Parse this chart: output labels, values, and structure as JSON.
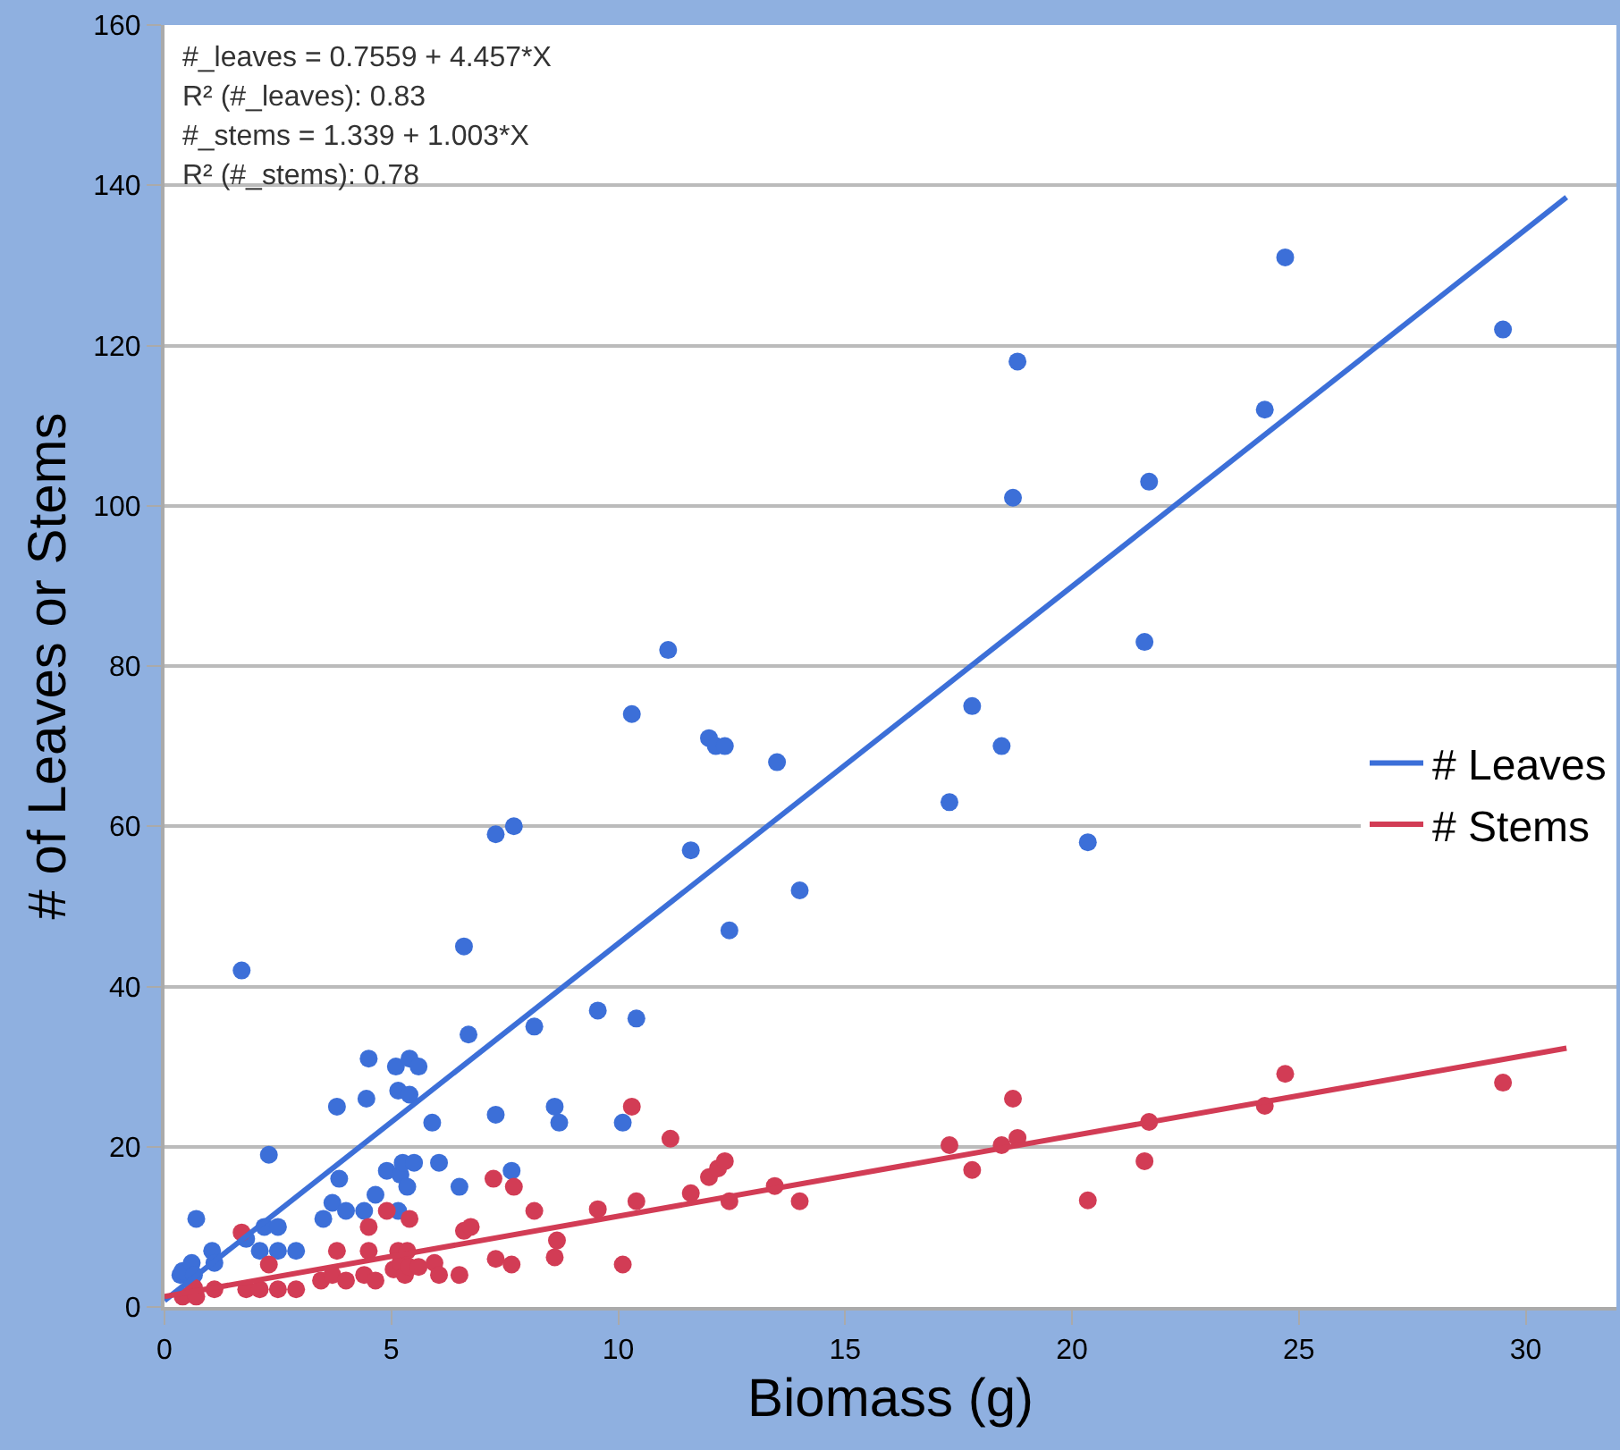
{
  "chart_data": {
    "type": "scatter",
    "xlabel": "Biomass (g)",
    "ylabel": "# of Leaves or Stems",
    "annotations": [
      "#_leaves = 0.7559 + 4.457*X",
      "R² (#_leaves): 0.83",
      "#_stems = 1.339 + 1.003*X",
      "R² (#_stems): 0.78"
    ],
    "xlim": [
      0,
      32
    ],
    "xticks": [
      0,
      5,
      10,
      15,
      20,
      25,
      30
    ],
    "ylim": [
      0,
      160
    ],
    "yticks": [
      0,
      20,
      40,
      60,
      80,
      100,
      120,
      140,
      160
    ],
    "grid": "y",
    "legend": "right",
    "series": [
      {
        "type": "scatter",
        "color": "#3c6fd8",
        "x": [
          0.35,
          0.4,
          0.6,
          0.65,
          0.7,
          1.05,
          1.1,
          1.7,
          1.8,
          2.1,
          2.2,
          2.3,
          2.5,
          2.5,
          2.9,
          3.5,
          3.7,
          3.8,
          3.85,
          4.0,
          4.4,
          4.45,
          4.5,
          4.65,
          4.9,
          5.1,
          5.15,
          5.15,
          5.2,
          5.25,
          5.35,
          5.4,
          5.4,
          5.5,
          5.6,
          5.9,
          6.05,
          6.5,
          6.6,
          6.7,
          7.3,
          7.3,
          7.65,
          7.7,
          8.15,
          8.6,
          8.7,
          9.55,
          10.1,
          10.3,
          10.4,
          11.1,
          11.6,
          12.0,
          12.15,
          12.35,
          12.45,
          13.5,
          14.0,
          17.3,
          17.8,
          18.45,
          18.7,
          18.8,
          20.35,
          21.6,
          21.7,
          24.25,
          24.7,
          29.5
        ],
        "values": [
          4,
          4.5,
          5.5,
          4,
          11,
          7,
          5.5,
          42,
          8.5,
          7,
          10,
          19,
          10,
          7,
          7,
          11,
          13,
          25,
          16,
          12,
          12,
          26,
          31,
          14,
          17,
          30,
          27,
          12,
          16.5,
          18,
          15,
          31,
          26.5,
          18,
          30,
          23,
          18,
          15,
          45,
          34,
          24,
          59,
          17,
          60,
          35,
          25,
          23,
          37,
          23,
          74,
          36,
          82,
          57,
          71,
          70,
          70,
          47,
          68,
          52,
          63,
          75,
          70,
          101,
          118,
          58,
          83,
          103,
          112,
          131,
          122
        ]
      },
      {
        "type": "scatter",
        "color": "#d23c55",
        "x": [
          0.4,
          0.65,
          0.7,
          1.1,
          1.7,
          1.8,
          2.1,
          2.3,
          2.5,
          2.9,
          3.45,
          3.7,
          3.8,
          4.0,
          4.4,
          4.5,
          4.5,
          4.65,
          4.9,
          5.05,
          5.15,
          5.2,
          5.3,
          5.35,
          5.4,
          5.4,
          5.6,
          5.95,
          6.05,
          6.5,
          6.6,
          6.75,
          7.25,
          7.3,
          7.65,
          7.7,
          8.15,
          8.6,
          8.65,
          9.55,
          10.1,
          10.3,
          10.4,
          11.15,
          11.6,
          12.0,
          12.2,
          12.35,
          12.45,
          13.45,
          14.0,
          17.3,
          17.8,
          18.45,
          18.7,
          18.8,
          20.35,
          21.6,
          21.7,
          24.25,
          24.7,
          29.5
        ],
        "values": [
          1.3,
          2.4,
          1.3,
          2.2,
          9.3,
          2.2,
          2.2,
          5.3,
          2.2,
          2.2,
          3.3,
          4,
          7,
          3.3,
          4,
          7,
          10,
          3.3,
          12,
          4.7,
          7,
          5.5,
          4,
          7,
          11,
          5,
          5,
          5.5,
          4,
          4,
          9.5,
          10,
          16,
          6,
          5.3,
          15,
          12,
          6.2,
          8.3,
          12.2,
          5.3,
          25,
          13.2,
          21,
          14.2,
          16.2,
          17.3,
          18.2,
          13.2,
          15.1,
          13.2,
          20.2,
          17.1,
          20.2,
          26,
          21.1,
          13.3,
          18.2,
          23.1,
          25.1,
          29.1,
          28
        ]
      },
      {
        "type": "line",
        "name": "# Leaves",
        "color": "#3c6fd8",
        "x": [
          0,
          30.9
        ],
        "values": [
          0.8,
          138.5
        ]
      },
      {
        "type": "line",
        "name": "# Stems",
        "color": "#d23c55",
        "x": [
          0,
          30.9
        ],
        "values": [
          1.3,
          32.3
        ]
      }
    ]
  }
}
